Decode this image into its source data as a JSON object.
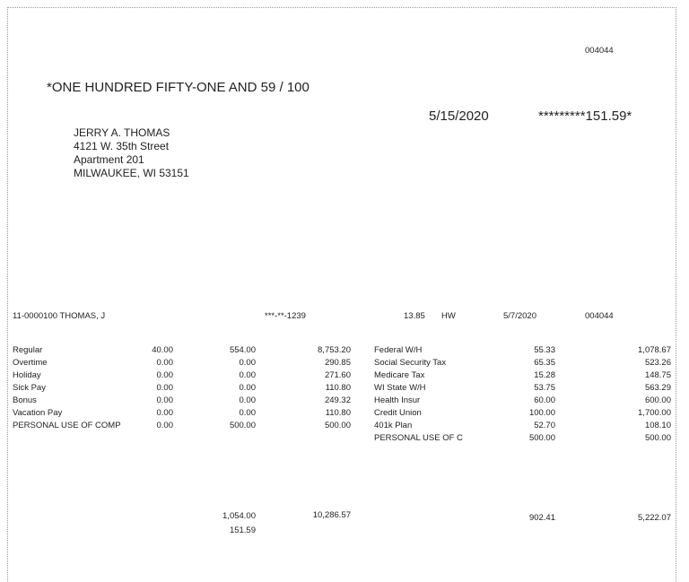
{
  "check": {
    "number": "004044",
    "amount_words": "*ONE HUNDRED FIFTY-ONE AND 59 / 100",
    "date": "5/15/2020",
    "amount": "*********151.59*"
  },
  "payee": {
    "name": "JERRY A. THOMAS",
    "line1": "4121 W. 35th Street",
    "line2": "Apartment 201",
    "line3": "MILWAUKEE, WI 53151"
  },
  "stub": {
    "employee": "11-0000100 THOMAS, J",
    "ssn": "***-**-1239",
    "rate": "13.85",
    "type": "HW",
    "period_date": "5/7/2020",
    "check_number": "004044"
  },
  "earnings": [
    {
      "label": "Regular",
      "hours": "40.00",
      "current": "554.00",
      "ytd": "8,753.20"
    },
    {
      "label": "Overtime",
      "hours": "0.00",
      "current": "0.00",
      "ytd": "290.85"
    },
    {
      "label": "Holiday",
      "hours": "0.00",
      "current": "0.00",
      "ytd": "271.60"
    },
    {
      "label": "Sick Pay",
      "hours": "0.00",
      "current": "0.00",
      "ytd": "110.80"
    },
    {
      "label": "Bonus",
      "hours": "0.00",
      "current": "0.00",
      "ytd": "249.32"
    },
    {
      "label": "Vacation Pay",
      "hours": "0.00",
      "current": "0.00",
      "ytd": "110.80"
    },
    {
      "label": "PERSONAL USE OF COMP",
      "hours": "0.00",
      "current": "500.00",
      "ytd": "500.00"
    }
  ],
  "deductions": [
    {
      "label": "Federal W/H",
      "current": "55.33",
      "ytd": "1,078.67"
    },
    {
      "label": "Social Security Tax",
      "current": "65.35",
      "ytd": "523.26"
    },
    {
      "label": "Medicare Tax",
      "current": "15.28",
      "ytd": "148.75"
    },
    {
      "label": "WI State W/H",
      "current": "53.75",
      "ytd": "563.29"
    },
    {
      "label": "Health Insur",
      "current": "60.00",
      "ytd": "600.00"
    },
    {
      "label": "Credit Union",
      "current": "100.00",
      "ytd": "1,700.00"
    },
    {
      "label": "401k Plan",
      "current": "52.70",
      "ytd": "108.10"
    },
    {
      "label": "PERSONAL USE OF C",
      "current": "500.00",
      "ytd": "500.00"
    }
  ],
  "totals": {
    "gross_current": "1,054.00",
    "net": "151.59",
    "gross_ytd": "10,286.57",
    "deductions_current": "902.41",
    "deductions_ytd": "5,222.07"
  }
}
